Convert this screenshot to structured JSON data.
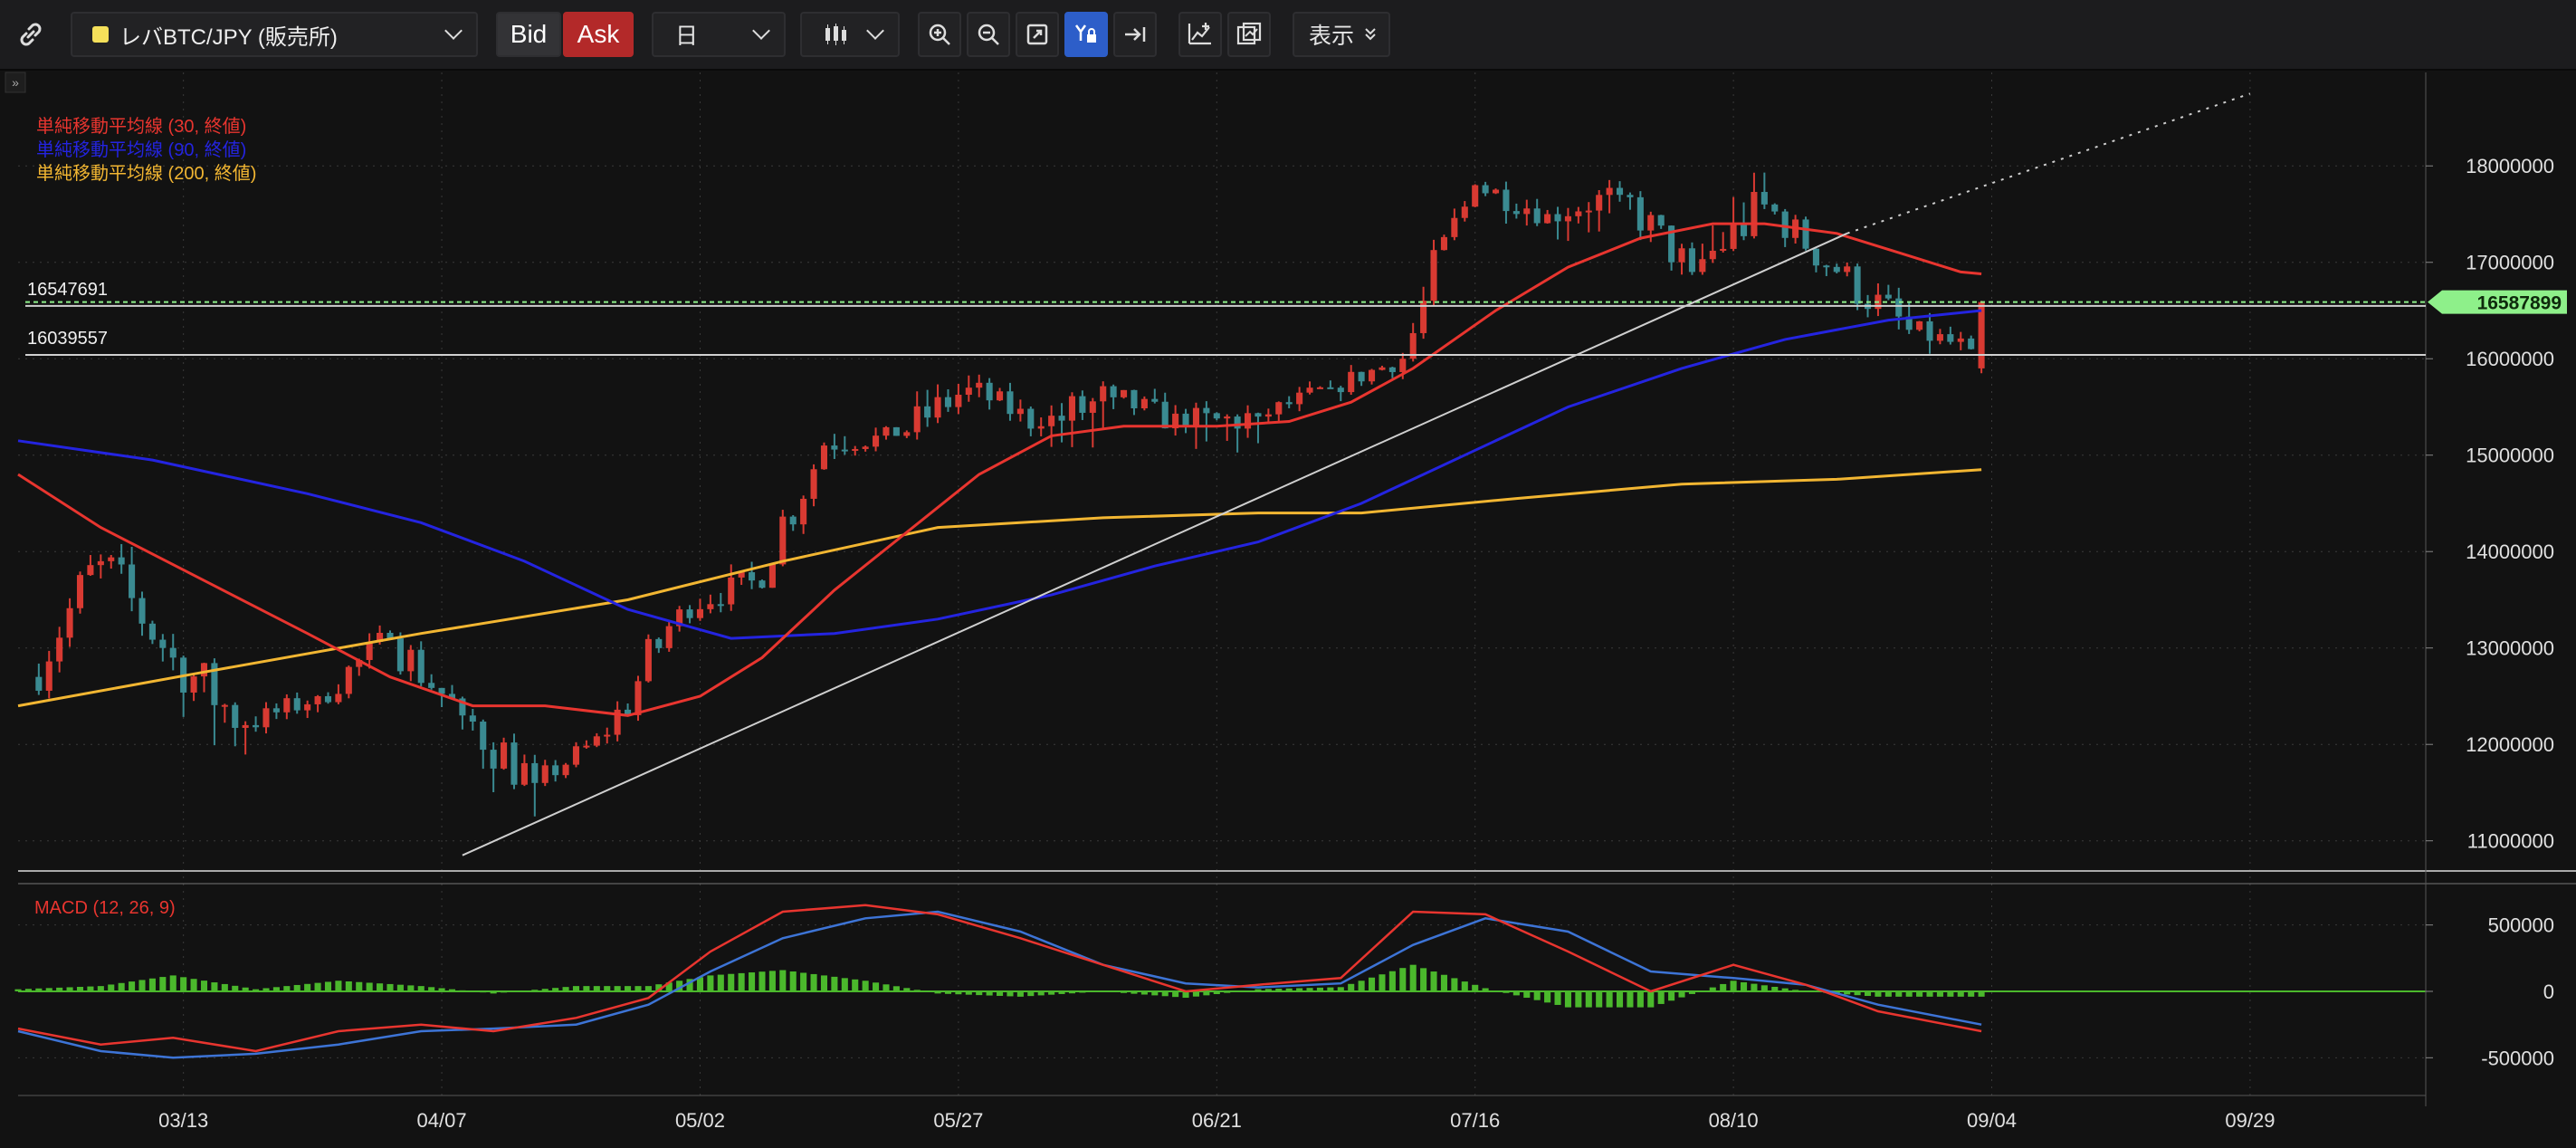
{
  "toolbar": {
    "link_icon": "link-icon",
    "symbol": "レバBTC/JPY (販売所)",
    "bid": "Bid",
    "ask": "Ask",
    "period": "日",
    "view": "表示",
    "colors": {
      "ask": "#b32929",
      "active_tool": "#2d5ec9",
      "symbol_marker": "#f5e05a"
    }
  },
  "chart_data": [
    {
      "type": "candlestick",
      "y_axis": {
        "ticks": [
          11000000,
          12000000,
          13000000,
          14000000,
          15000000,
          16000000,
          17000000,
          18000000
        ],
        "ylim": [
          10800000,
          18500000
        ]
      },
      "x_axis": {
        "tick_labels": [
          "03/13",
          "04/07",
          "05/02",
          "05/27",
          "06/21",
          "07/16",
          "08/10",
          "09/04",
          "09/29"
        ],
        "tick_dates": [
          "2025-03-13",
          "2025-04-07",
          "2025-05-02",
          "2025-05-27",
          "2025-06-21",
          "2025-07-16",
          "2025-08-10",
          "2025-09-04",
          "2025-09-29"
        ],
        "range": [
          "2025-02-25",
          "2025-10-16"
        ]
      },
      "legend": [
        {
          "label": "単純移動平均線 (30, 終値)",
          "color": "#e8352f"
        },
        {
          "label": "単純移動平均線 (90, 終値)",
          "color": "#2424e0"
        },
        {
          "label": "単純移動平均線 (200, 終値)",
          "color": "#f2b632"
        }
      ],
      "horizontal_lines": [
        {
          "label": "16547691",
          "value": 16547691,
          "color": "#d0d0d0"
        },
        {
          "label": "16039557",
          "value": 16039557,
          "color": "#d0d0d0"
        }
      ],
      "current_price": {
        "label": "16587899",
        "value": 16587899,
        "color": "#8ef08a"
      },
      "trendline": {
        "start": [
          "2025-04-09",
          10850000
        ],
        "end": [
          "2025-08-21",
          17300000
        ],
        "extends_to": [
          "2025-09-29",
          18750000
        ],
        "color": "#cfcfcf"
      },
      "ma30": [
        [
          "2025-02-25",
          14800000
        ],
        [
          "2025-03-05",
          14250000
        ],
        [
          "2025-03-15",
          13700000
        ],
        [
          "2025-03-25",
          13150000
        ],
        [
          "2025-04-02",
          12700000
        ],
        [
          "2025-04-10",
          12400000
        ],
        [
          "2025-04-17",
          12400000
        ],
        [
          "2025-04-25",
          12300000
        ],
        [
          "2025-05-02",
          12500000
        ],
        [
          "2025-05-08",
          12900000
        ],
        [
          "2025-05-15",
          13600000
        ],
        [
          "2025-05-22",
          14200000
        ],
        [
          "2025-05-29",
          14800000
        ],
        [
          "2025-06-05",
          15200000
        ],
        [
          "2025-06-12",
          15300000
        ],
        [
          "2025-06-21",
          15300000
        ],
        [
          "2025-06-28",
          15350000
        ],
        [
          "2025-07-04",
          15550000
        ],
        [
          "2025-07-10",
          15900000
        ],
        [
          "2025-07-18",
          16500000
        ],
        [
          "2025-07-25",
          16950000
        ],
        [
          "2025-08-01",
          17250000
        ],
        [
          "2025-08-08",
          17400000
        ],
        [
          "2025-08-13",
          17400000
        ],
        [
          "2025-08-20",
          17300000
        ],
        [
          "2025-08-26",
          17100000
        ],
        [
          "2025-09-01",
          16900000
        ],
        [
          "2025-09-03",
          16880000
        ]
      ],
      "ma90": [
        [
          "2025-02-25",
          15150000
        ],
        [
          "2025-03-10",
          14950000
        ],
        [
          "2025-03-25",
          14600000
        ],
        [
          "2025-04-05",
          14300000
        ],
        [
          "2025-04-15",
          13900000
        ],
        [
          "2025-04-25",
          13400000
        ],
        [
          "2025-05-05",
          13100000
        ],
        [
          "2025-05-15",
          13150000
        ],
        [
          "2025-05-25",
          13300000
        ],
        [
          "2025-06-05",
          13550000
        ],
        [
          "2025-06-15",
          13850000
        ],
        [
          "2025-06-25",
          14100000
        ],
        [
          "2025-07-05",
          14500000
        ],
        [
          "2025-07-15",
          15000000
        ],
        [
          "2025-07-25",
          15500000
        ],
        [
          "2025-08-05",
          15900000
        ],
        [
          "2025-08-15",
          16200000
        ],
        [
          "2025-08-25",
          16400000
        ],
        [
          "2025-09-03",
          16500000
        ]
      ],
      "ma200": [
        [
          "2025-02-25",
          12400000
        ],
        [
          "2025-03-15",
          12750000
        ],
        [
          "2025-04-05",
          13150000
        ],
        [
          "2025-04-25",
          13500000
        ],
        [
          "2025-05-10",
          13900000
        ],
        [
          "2025-05-25",
          14250000
        ],
        [
          "2025-06-10",
          14350000
        ],
        [
          "2025-06-25",
          14400000
        ],
        [
          "2025-07-05",
          14400000
        ],
        [
          "2025-07-20",
          14550000
        ],
        [
          "2025-08-05",
          14700000
        ],
        [
          "2025-08-20",
          14750000
        ],
        [
          "2025-09-03",
          14850000
        ]
      ],
      "ohlc_weekly_approx": [
        [
          "2025-02-27",
          12700000,
          14200000,
          12400000,
          13900000
        ],
        [
          "2025-03-06",
          13900000,
          14300000,
          12600000,
          12900000
        ],
        [
          "2025-03-13",
          12900000,
          13000000,
          11300000,
          12200000
        ],
        [
          "2025-03-20",
          12200000,
          12700000,
          12000000,
          12500000
        ],
        [
          "2025-03-27",
          12500000,
          13300000,
          12300000,
          13100000
        ],
        [
          "2025-04-03",
          13100000,
          13300000,
          12000000,
          12300000
        ],
        [
          "2025-04-10",
          12300000,
          12500000,
          10900000,
          11600000
        ],
        [
          "2025-04-17",
          11600000,
          12200000,
          11500000,
          12100000
        ],
        [
          "2025-04-24",
          12100000,
          13600000,
          12000000,
          13400000
        ],
        [
          "2025-05-01",
          13400000,
          14000000,
          13200000,
          13700000
        ],
        [
          "2025-05-08",
          13700000,
          15200000,
          13500000,
          15100000
        ],
        [
          "2025-05-15",
          15100000,
          15500000,
          14900000,
          15200000
        ],
        [
          "2025-05-22",
          15200000,
          16100000,
          15000000,
          15700000
        ],
        [
          "2025-05-29",
          15700000,
          15900000,
          15100000,
          15300000
        ],
        [
          "2025-06-05",
          15300000,
          15900000,
          14500000,
          15600000
        ],
        [
          "2025-06-12",
          15600000,
          15900000,
          15100000,
          15300000
        ],
        [
          "2025-06-19",
          15300000,
          15600000,
          14500000,
          15400000
        ],
        [
          "2025-06-26",
          15400000,
          15800000,
          15200000,
          15700000
        ],
        [
          "2025-07-03",
          15700000,
          16100000,
          15500000,
          16000000
        ],
        [
          "2025-07-10",
          16000000,
          18100000,
          15900000,
          17800000
        ],
        [
          "2025-07-17",
          17800000,
          18000000,
          17200000,
          17500000
        ],
        [
          "2025-07-24",
          17500000,
          17900000,
          17000000,
          17700000
        ],
        [
          "2025-07-31",
          17700000,
          17800000,
          16600000,
          16900000
        ],
        [
          "2025-08-07",
          16900000,
          18300000,
          16800000,
          17600000
        ],
        [
          "2025-08-14",
          17600000,
          17700000,
          16600000,
          16900000
        ],
        [
          "2025-08-21",
          16900000,
          17200000,
          16000000,
          16300000
        ],
        [
          "2025-08-28",
          16300000,
          16500000,
          15800000,
          16100000
        ],
        [
          "2025-09-03",
          15900000,
          16600000,
          15850000,
          16588000
        ]
      ]
    },
    {
      "type": "macd",
      "label": "MACD (12, 26, 9)",
      "y_axis": {
        "ticks": [
          500000,
          0,
          -500000
        ],
        "ylim": [
          -750000,
          750000
        ]
      },
      "macd": [
        [
          "2025-02-25",
          -280000
        ],
        [
          "2025-03-05",
          -400000
        ],
        [
          "2025-03-12",
          -350000
        ],
        [
          "2025-03-20",
          -450000
        ],
        [
          "2025-03-28",
          -300000
        ],
        [
          "2025-04-05",
          -250000
        ],
        [
          "2025-04-12",
          -300000
        ],
        [
          "2025-04-20",
          -200000
        ],
        [
          "2025-04-27",
          -50000
        ],
        [
          "2025-05-03",
          300000
        ],
        [
          "2025-05-10",
          600000
        ],
        [
          "2025-05-18",
          650000
        ],
        [
          "2025-05-25",
          580000
        ],
        [
          "2025-06-02",
          400000
        ],
        [
          "2025-06-10",
          200000
        ],
        [
          "2025-06-18",
          0
        ],
        [
          "2025-06-25",
          50000
        ],
        [
          "2025-07-03",
          100000
        ],
        [
          "2025-07-10",
          600000
        ],
        [
          "2025-07-17",
          580000
        ],
        [
          "2025-07-25",
          300000
        ],
        [
          "2025-08-02",
          0
        ],
        [
          "2025-08-10",
          200000
        ],
        [
          "2025-08-17",
          50000
        ],
        [
          "2025-08-24",
          -150000
        ],
        [
          "2025-09-03",
          -300000
        ]
      ],
      "signal": [
        [
          "2025-02-25",
          -300000
        ],
        [
          "2025-03-05",
          -450000
        ],
        [
          "2025-03-12",
          -500000
        ],
        [
          "2025-03-20",
          -470000
        ],
        [
          "2025-03-28",
          -400000
        ],
        [
          "2025-04-05",
          -300000
        ],
        [
          "2025-04-12",
          -280000
        ],
        [
          "2025-04-20",
          -250000
        ],
        [
          "2025-04-27",
          -100000
        ],
        [
          "2025-05-03",
          150000
        ],
        [
          "2025-05-10",
          400000
        ],
        [
          "2025-05-18",
          550000
        ],
        [
          "2025-05-25",
          600000
        ],
        [
          "2025-06-02",
          450000
        ],
        [
          "2025-06-10",
          200000
        ],
        [
          "2025-06-18",
          60000
        ],
        [
          "2025-06-25",
          30000
        ],
        [
          "2025-07-03",
          60000
        ],
        [
          "2025-07-10",
          350000
        ],
        [
          "2025-07-17",
          550000
        ],
        [
          "2025-07-25",
          450000
        ],
        [
          "2025-08-02",
          150000
        ],
        [
          "2025-08-10",
          100000
        ],
        [
          "2025-08-17",
          50000
        ],
        [
          "2025-08-24",
          -100000
        ],
        [
          "2025-09-03",
          -250000
        ]
      ],
      "colors": {
        "macd": "#e8352f",
        "signal": "#3d74d6",
        "histogram": "#4bb82c",
        "zero": "#4bb82c"
      }
    }
  ]
}
